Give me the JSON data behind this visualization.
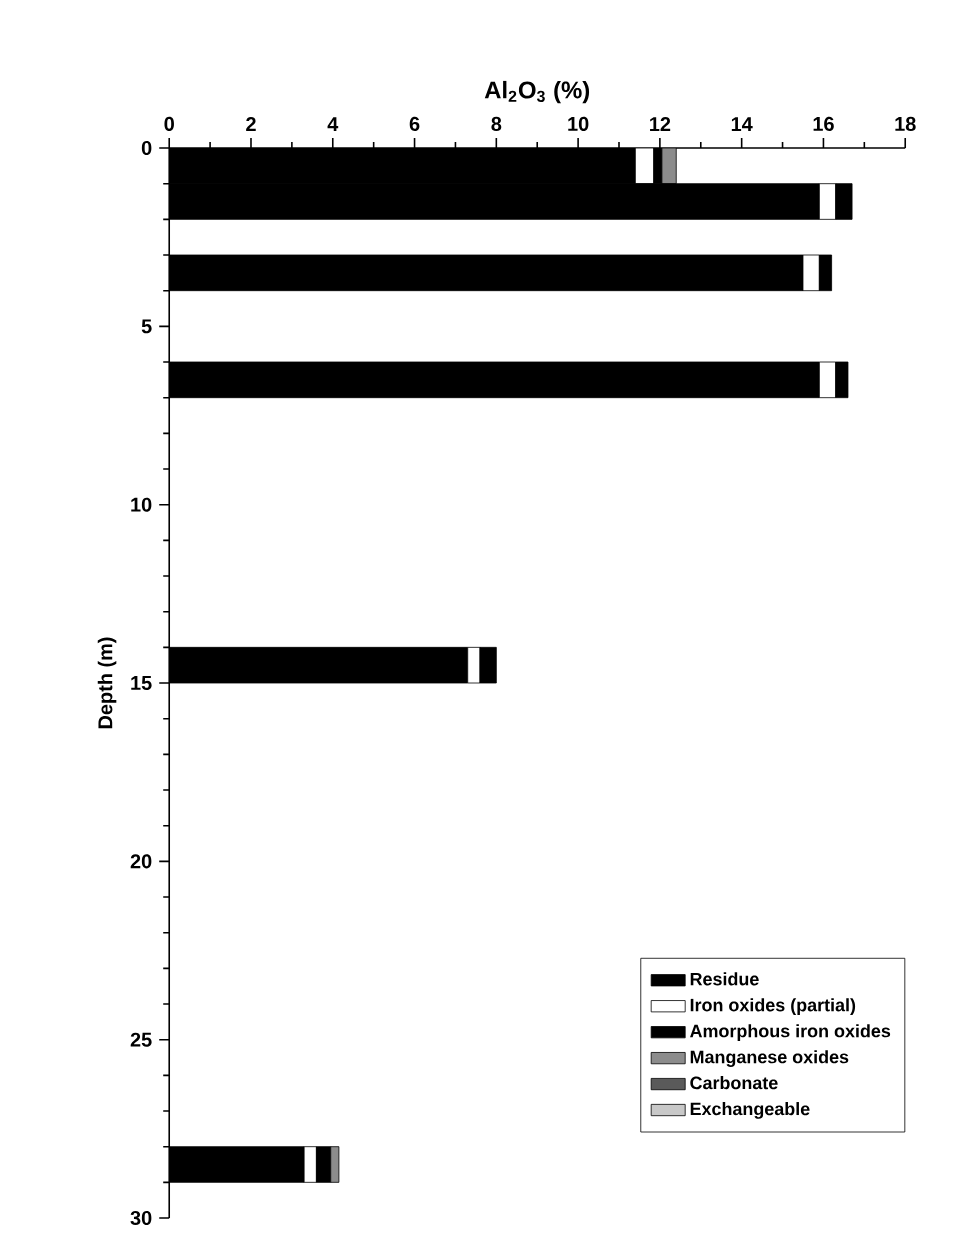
{
  "chart_data": {
    "type": "bar",
    "orientation": "horizontal",
    "stacked": true,
    "xlabel": "Al$_{2}$O$_{3}$ (%)",
    "ylabel": "Depth (m)",
    "x": [
      0.5,
      1.5,
      3.5,
      6.5,
      14.5,
      28.5
    ],
    "xlim": [
      0,
      18
    ],
    "xticks": [
      0,
      2,
      4,
      6,
      8,
      10,
      12,
      14,
      16,
      18
    ],
    "ylim": [
      30,
      0
    ],
    "yticks": [
      0,
      5,
      10,
      15,
      20,
      25,
      30
    ],
    "legend": "bottom right",
    "series": [
      {
        "name": "Residue",
        "color": "#000000",
        "values": [
          11.4,
          15.9,
          15.5,
          15.9,
          7.3,
          3.3
        ]
      },
      {
        "name": "Iron oxides (partial)",
        "color": "#ffffff",
        "values": [
          0.45,
          0.4,
          0.4,
          0.4,
          0.3,
          0.3
        ]
      },
      {
        "name": "Amorphous iron oxides",
        "color": "#000000",
        "values": [
          0.2,
          0.4,
          0.3,
          0.3,
          0.4,
          0.35
        ]
      },
      {
        "name": "Manganese oxides",
        "color": "#8c8c8c",
        "values": [
          0.35,
          null,
          null,
          null,
          null,
          0.2
        ]
      },
      {
        "name": "Carbonate",
        "color": "#5a5a5a",
        "values": [
          null,
          null,
          null,
          null,
          null,
          null
        ]
      },
      {
        "name": "Exchangeable",
        "color": "#c8c8c8",
        "values": [
          null,
          null,
          null,
          null,
          null,
          null
        ]
      }
    ]
  }
}
